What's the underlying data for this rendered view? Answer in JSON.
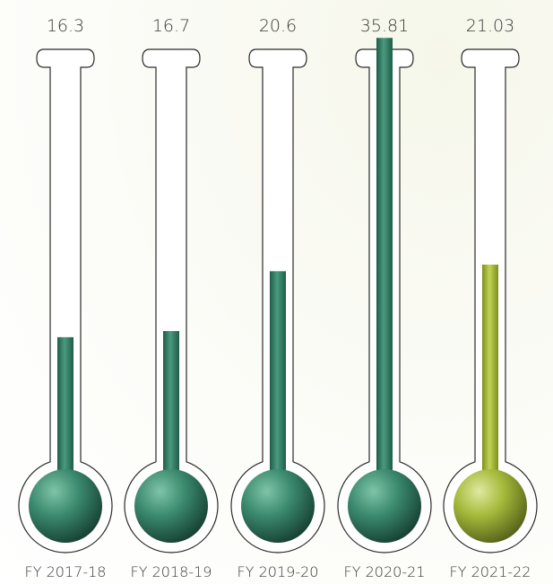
{
  "chart_data": {
    "type": "bar",
    "style": "thermometer",
    "categories": [
      "FY 2017-18",
      "FY 2018-19",
      "FY 2019-20",
      "FY 2020-21",
      "FY 2021-22"
    ],
    "values": [
      16.3,
      16.7,
      20.6,
      35.81,
      21.03
    ],
    "value_labels": [
      "16.3",
      "16.7",
      "20.6",
      "35.81",
      "21.03"
    ],
    "title": "",
    "xlabel": "",
    "ylabel": "",
    "colors": {
      "default": "#2f7f66",
      "highlight": "#a2b52e",
      "highlight_index": 4
    }
  }
}
